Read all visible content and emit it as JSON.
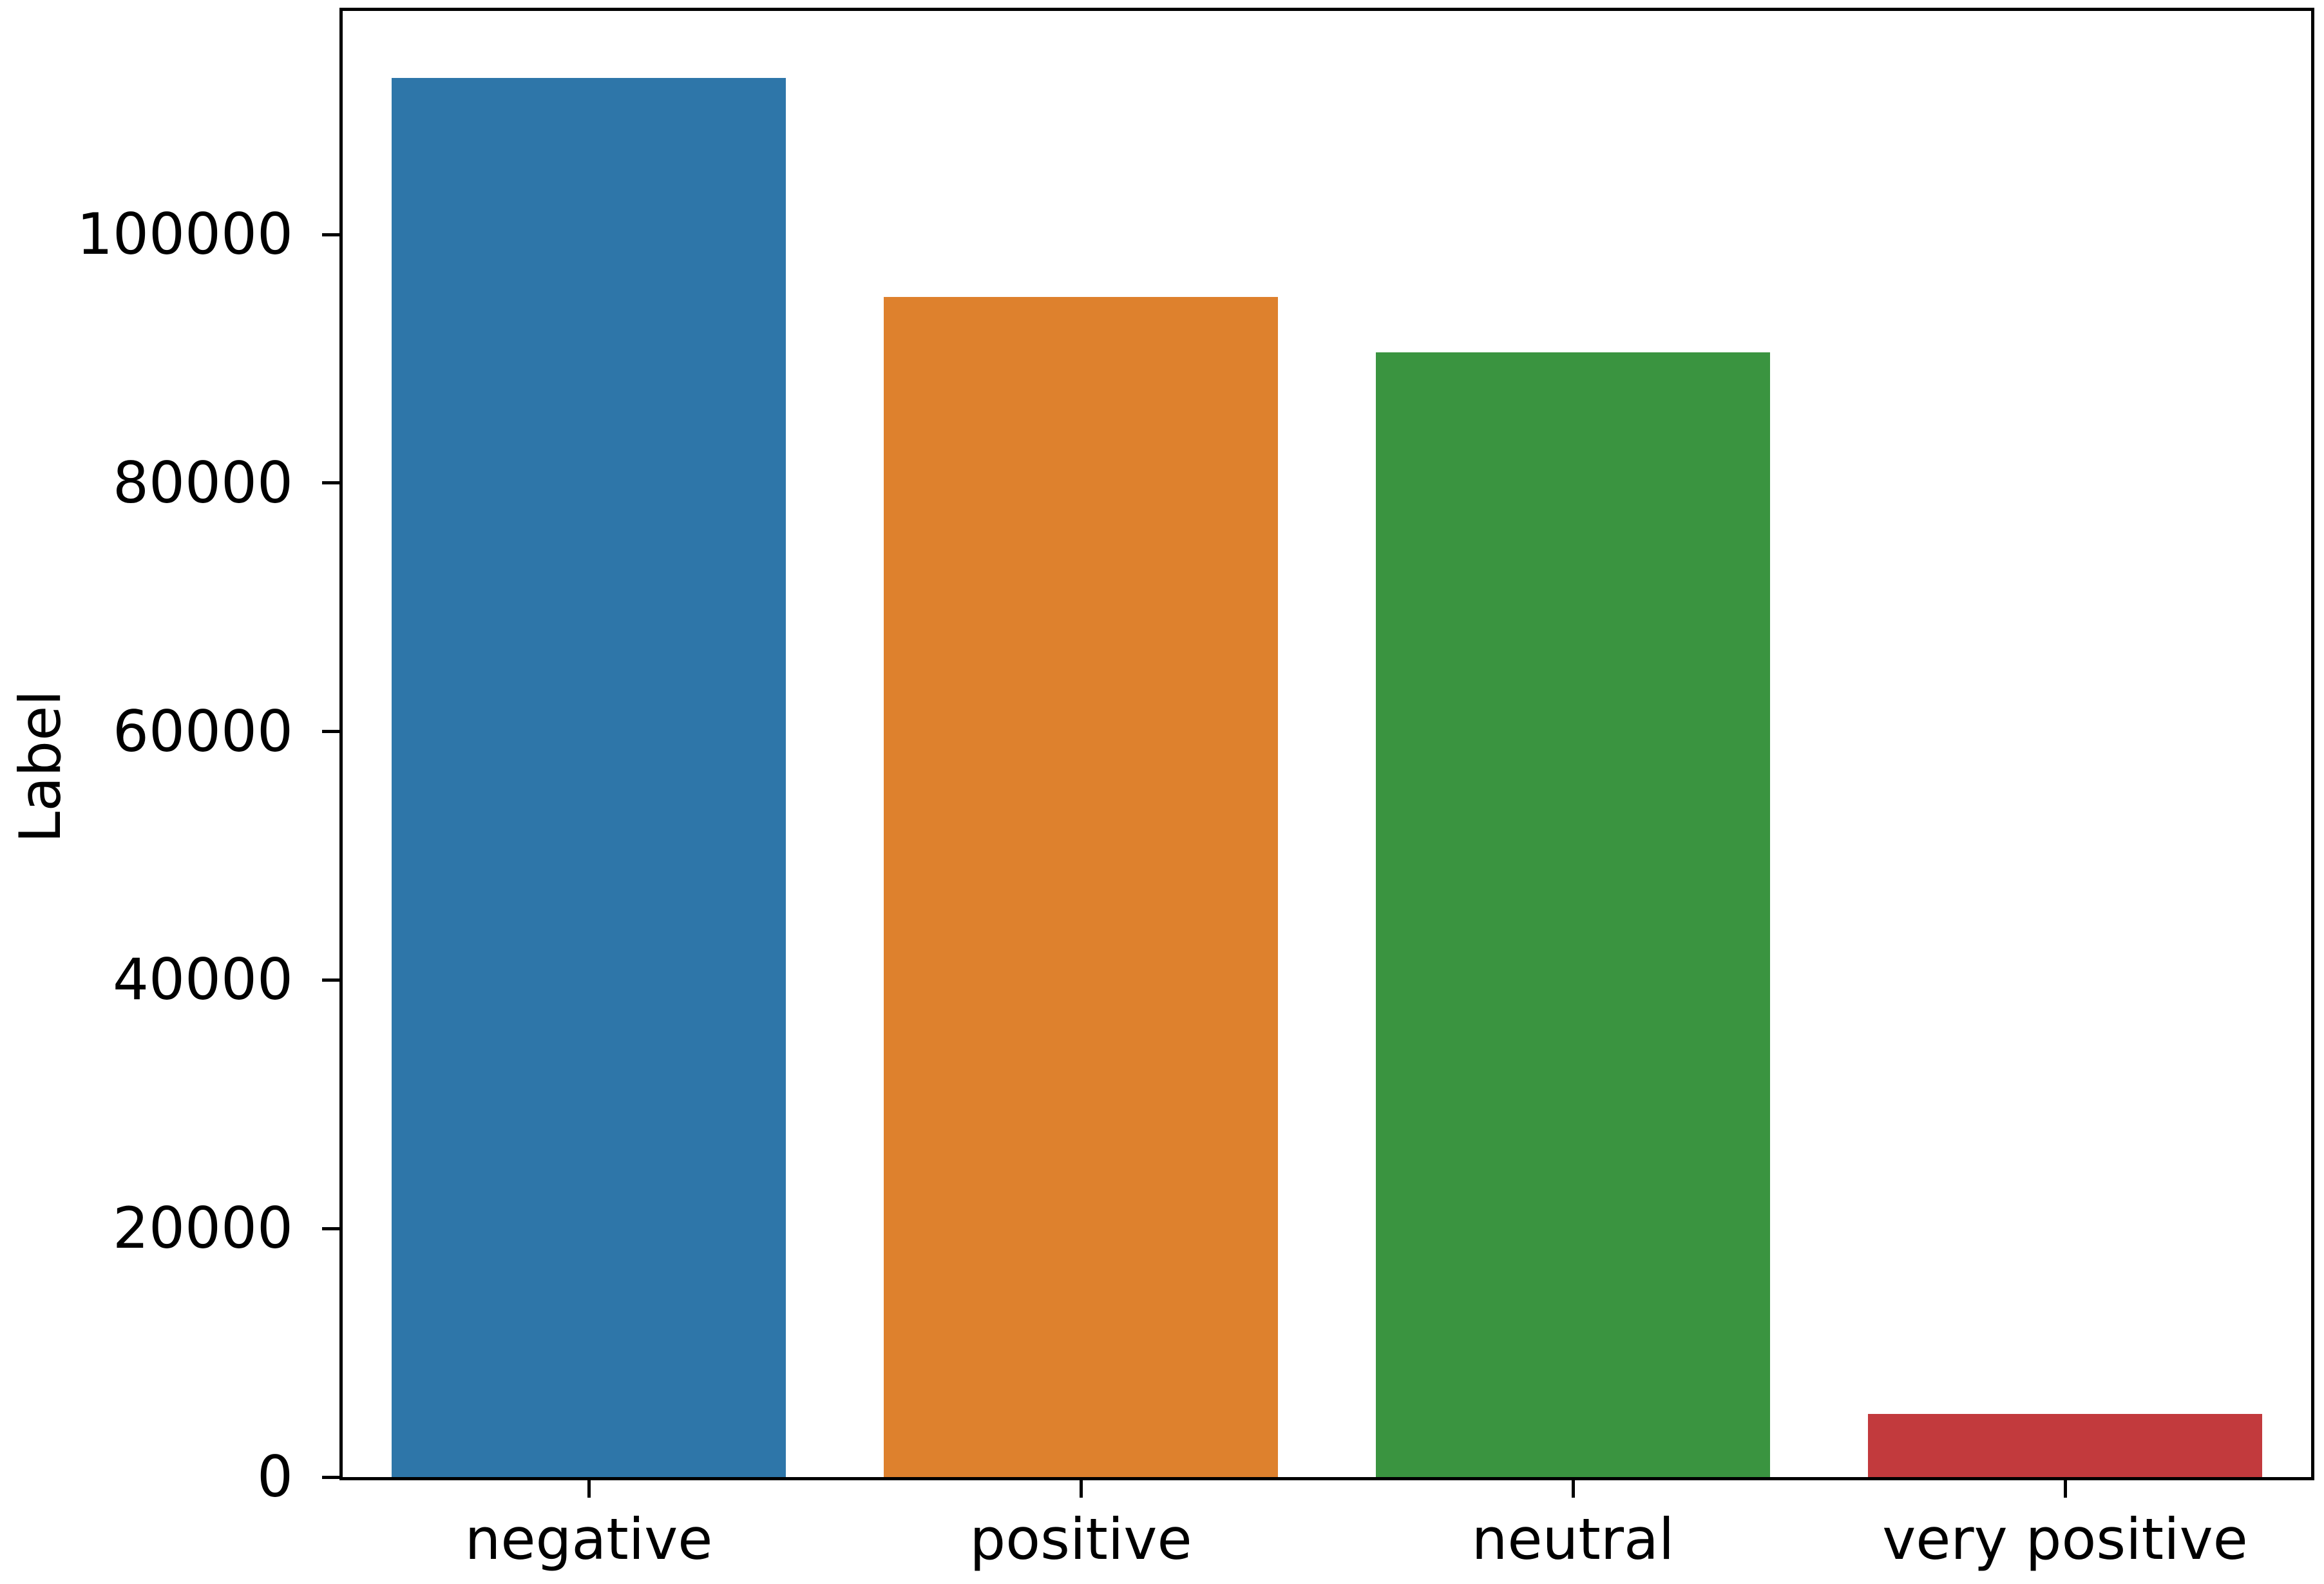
{
  "chart_data": {
    "type": "bar",
    "title": "",
    "xlabel": "",
    "ylabel": "Label",
    "categories": [
      "negative",
      "positive",
      "neutral",
      "very positive"
    ],
    "values": [
      112600,
      95000,
      90500,
      5100
    ],
    "bar_colors": [
      "#2e76a9",
      "#de812d",
      "#3a9440",
      "#c23a3d"
    ],
    "yticks": [
      0,
      20000,
      40000,
      60000,
      80000,
      100000
    ],
    "ylim": [
      0,
      118000
    ],
    "bar_width_fraction": 0.8,
    "grid": false,
    "legend": null,
    "spine_color": "#000000",
    "background": "#ffffff"
  }
}
